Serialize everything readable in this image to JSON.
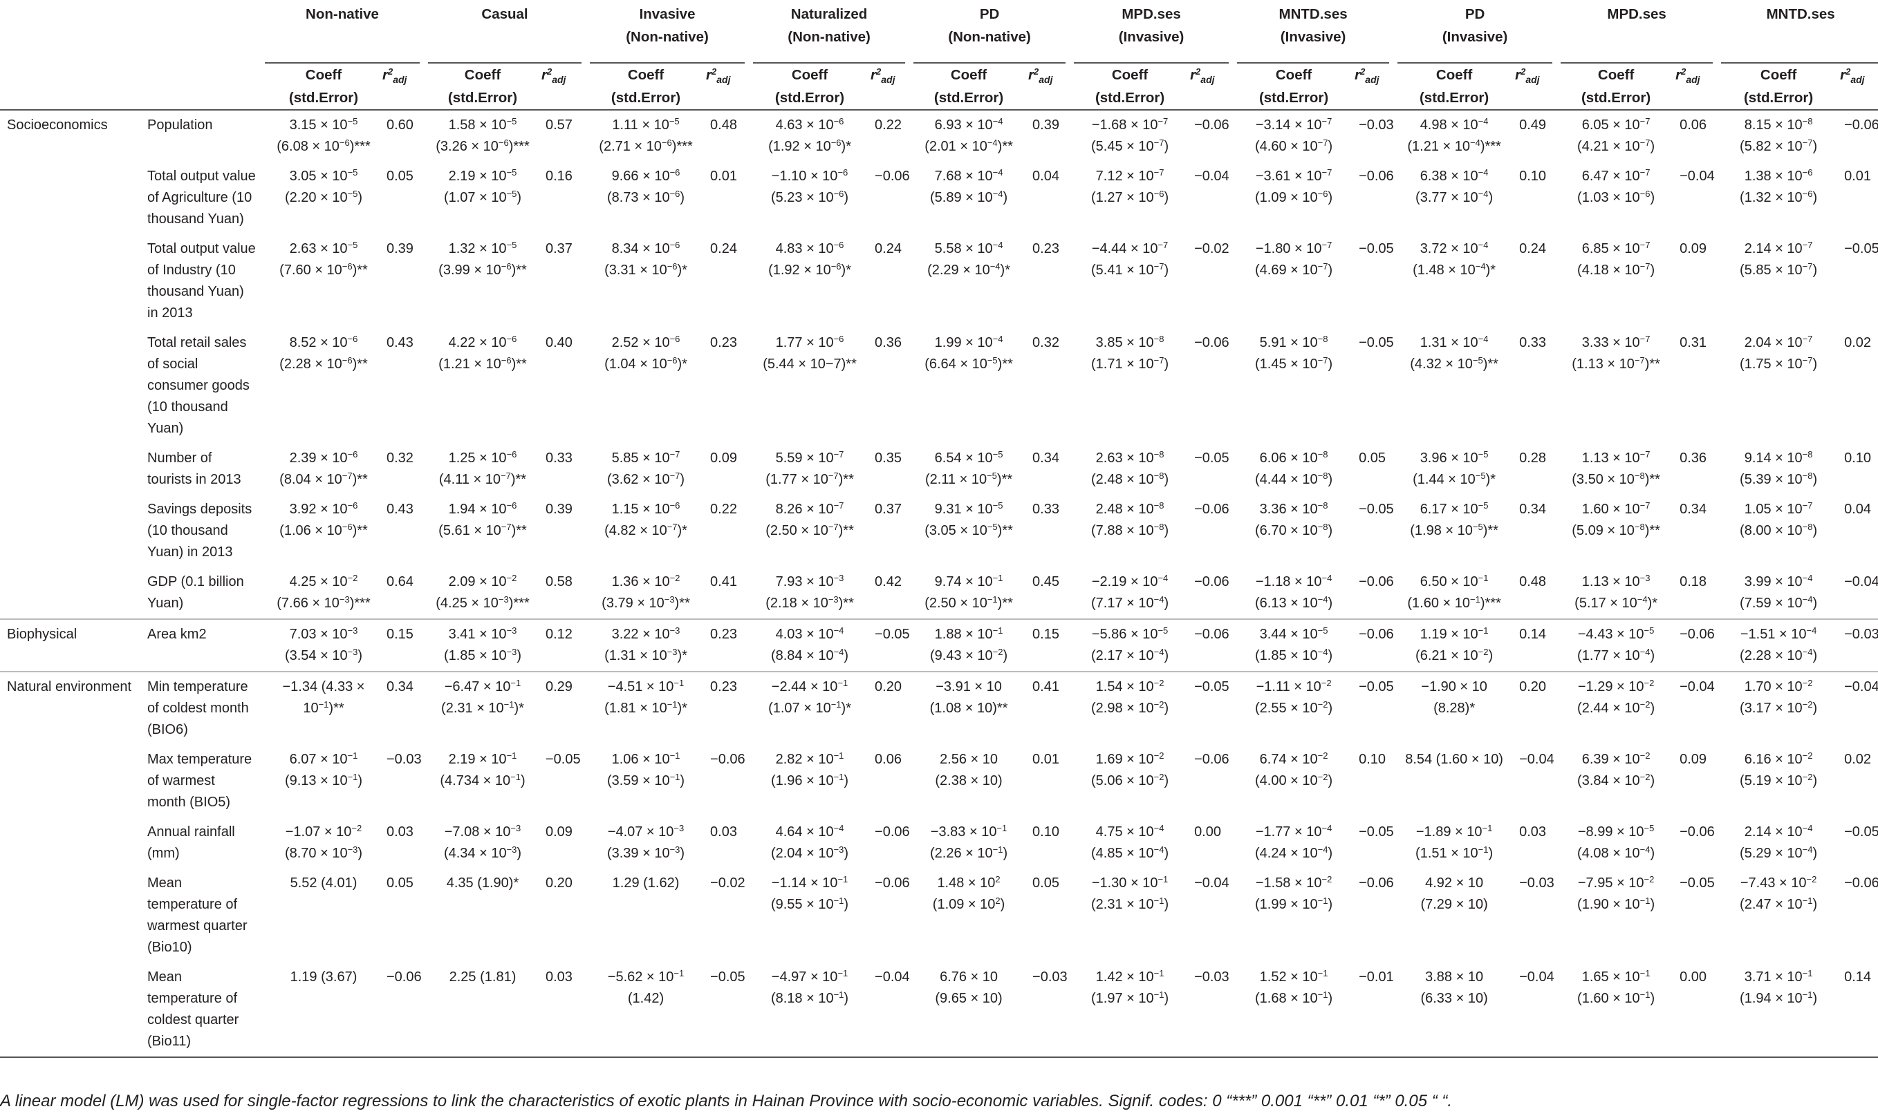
{
  "table": {
    "groups": [
      {
        "label": "Non-native",
        "sub": ""
      },
      {
        "label": "Casual",
        "sub": ""
      },
      {
        "label": "Invasive",
        "sub": "(Non-native)"
      },
      {
        "label": "Naturalized",
        "sub": "(Non-native)"
      },
      {
        "label": "PD",
        "sub": "(Non-native)"
      },
      {
        "label": "MPD.ses",
        "sub": "(Invasive)"
      },
      {
        "label": "MNTD.ses",
        "sub": "(Invasive)"
      },
      {
        "label": "PD",
        "sub": "(Invasive)"
      },
      {
        "label": "MPD.ses",
        "sub": ""
      },
      {
        "label": "MNTD.ses",
        "sub": ""
      }
    ],
    "coeff_header": {
      "line1": "Coeff",
      "line2": "(std.Error)"
    },
    "r2_header": {
      "r": "r",
      "sup": "2",
      "sub": "adj"
    },
    "rows": [
      {
        "category": "Socioeconomics",
        "variable": "Population",
        "cells": [
          {
            "c": "3.15 × 10<sup>−5</sup><br>(6.08 × 10<sup>−6</sup>)***",
            "r": "0.60"
          },
          {
            "c": "1.58 × 10<sup>−5</sup><br>(3.26 × 10<sup>−6</sup>)***",
            "r": "0.57"
          },
          {
            "c": "1.11 × 10<sup>−5</sup><br>(2.71 × 10<sup>−6</sup>)***",
            "r": "0.48"
          },
          {
            "c": "4.63 × 10<sup>−6</sup><br>(1.92 × 10<sup>−6</sup>)*",
            "r": "0.22"
          },
          {
            "c": "6.93 × 10<sup>−4</sup><br>(2.01 × 10<sup>−4</sup>)**",
            "r": "0.39"
          },
          {
            "c": "−1.68 × 10<sup>−7</sup><br>(5.45 × 10<sup>−7</sup>)",
            "r": "−0.06"
          },
          {
            "c": "−3.14 × 10<sup>−7</sup><br>(4.60 × 10<sup>−7</sup>)",
            "r": "−0.03"
          },
          {
            "c": "4.98 × 10<sup>−4</sup><br>(1.21 × 10<sup>−4</sup>)***",
            "r": "0.49"
          },
          {
            "c": "6.05 × 10<sup>−7</sup><br>(4.21 × 10<sup>−7</sup>)",
            "r": "0.06"
          },
          {
            "c": "8.15 × 10<sup>−8</sup><br>(5.82 × 10<sup>−7</sup>)",
            "r": "−0.06"
          }
        ]
      },
      {
        "category": "",
        "variable": "Total output value of Agriculture (10 thousand Yuan)",
        "cells": [
          {
            "c": "3.05 × 10<sup>−5</sup><br>(2.20 × 10<sup>−5</sup>)",
            "r": "0.05"
          },
          {
            "c": "2.19 × 10<sup>−5</sup><br>(1.07 × 10<sup>−5</sup>)",
            "r": "0.16"
          },
          {
            "c": "9.66 × 10<sup>−6</sup><br>(8.73 × 10<sup>−6</sup>)",
            "r": "0.01"
          },
          {
            "c": "−1.10 × 10<sup>−6</sup><br>(5.23 × 10<sup>−6</sup>)",
            "r": "−0.06"
          },
          {
            "c": "7.68 × 10<sup>−4</sup><br>(5.89 × 10<sup>−4</sup>)",
            "r": "0.04"
          },
          {
            "c": "7.12 × 10<sup>−7</sup><br>(1.27 × 10<sup>−6</sup>)",
            "r": "−0.04"
          },
          {
            "c": "−3.61 × 10<sup>−7</sup><br>(1.09 × 10<sup>−6</sup>)",
            "r": "−0.06"
          },
          {
            "c": "6.38 × 10<sup>−4</sup><br>(3.77 × 10<sup>−4</sup>)",
            "r": "0.10"
          },
          {
            "c": "6.47 × 10<sup>−7</sup><br>(1.03 × 10<sup>−6</sup>)",
            "r": "−0.04"
          },
          {
            "c": "1.38 × 10<sup>−6</sup><br>(1.32 × 10<sup>−6</sup>)",
            "r": "0.01"
          }
        ]
      },
      {
        "category": "",
        "variable": "Total output value of Industry (10 thousand Yuan) in 2013",
        "cells": [
          {
            "c": "2.63 × 10<sup>−5</sup><br>(7.60 × 10<sup>−6</sup>)**",
            "r": "0.39"
          },
          {
            "c": "1.32 × 10<sup>−5</sup><br>(3.99 × 10<sup>−6</sup>)**",
            "r": "0.37"
          },
          {
            "c": "8.34 × 10<sup>−6</sup><br>(3.31 × 10<sup>−6</sup>)*",
            "r": "0.24"
          },
          {
            "c": "4.83 × 10<sup>−6</sup><br>(1.92 × 10<sup>−6</sup>)*",
            "r": "0.24"
          },
          {
            "c": "5.58 × 10<sup>−4</sup><br>(2.29 × 10<sup>−4</sup>)*",
            "r": "0.23"
          },
          {
            "c": "−4.44 × 10<sup>−7</sup><br>(5.41 × 10<sup>−7</sup>)",
            "r": "−0.02"
          },
          {
            "c": "−1.80 × 10<sup>−7</sup><br>(4.69 × 10<sup>−7</sup>)",
            "r": "−0.05"
          },
          {
            "c": "3.72 × 10<sup>−4</sup><br>(1.48 × 10<sup>−4</sup>)*",
            "r": "0.24"
          },
          {
            "c": "6.85 × 10<sup>−7</sup><br>(4.18 × 10<sup>−7</sup>)",
            "r": "0.09"
          },
          {
            "c": "2.14 × 10<sup>−7</sup><br>(5.85 × 10<sup>−7</sup>)",
            "r": "−0.05"
          }
        ]
      },
      {
        "category": "",
        "variable": "Total retail sales of social consumer goods (10 thousand Yuan)",
        "cells": [
          {
            "c": "8.52 × 10<sup>−6</sup><br>(2.28 × 10<sup>−6</sup>)**",
            "r": "0.43"
          },
          {
            "c": "4.22 × 10<sup>−6</sup><br>(1.21 × 10<sup>−6</sup>)**",
            "r": "0.40"
          },
          {
            "c": "2.52 × 10<sup>−6</sup><br>(1.04 × 10<sup>−6</sup>)*",
            "r": "0.23"
          },
          {
            "c": "1.77 × 10<sup>−6</sup><br>(5.44 × 10−7)**",
            "r": "0.36"
          },
          {
            "c": "1.99 × 10<sup>−4</sup><br>(6.64 × 10<sup>−5</sup>)**",
            "r": "0.32"
          },
          {
            "c": "3.85 × 10<sup>−8</sup><br>(1.71 × 10<sup>−7</sup>)",
            "r": "−0.06"
          },
          {
            "c": "5.91 × 10<sup>−8</sup><br>(1.45 × 10<sup>−7</sup>)",
            "r": "−0.05"
          },
          {
            "c": "1.31 × 10<sup>−4</sup><br>(4.32 × 10<sup>−5</sup>)**",
            "r": "0.33"
          },
          {
            "c": "3.33 × 10<sup>−7</sup><br>(1.13 × 10<sup>−7</sup>)**",
            "r": "0.31"
          },
          {
            "c": "2.04 × 10<sup>−7</sup><br>(1.75 × 10<sup>−7</sup>)",
            "r": "0.02"
          }
        ]
      },
      {
        "category": "",
        "variable": "Number of tourists in 2013",
        "cells": [
          {
            "c": "2.39 × 10<sup>−6</sup><br>(8.04 × 10<sup>−7</sup>)**",
            "r": "0.32"
          },
          {
            "c": "1.25 × 10<sup>−6</sup><br>(4.11 × 10<sup>−7</sup>)**",
            "r": "0.33"
          },
          {
            "c": "5.85 × 10<sup>−7</sup><br>(3.62 × 10<sup>−7</sup>)",
            "r": "0.09"
          },
          {
            "c": "5.59 × 10<sup>−7</sup><br>(1.77 × 10<sup>−7</sup>)**",
            "r": "0.35"
          },
          {
            "c": "6.54 × 10<sup>−5</sup><br>(2.11 × 10<sup>−5</sup>)**",
            "r": "0.34"
          },
          {
            "c": "2.63 × 10<sup>−8</sup><br>(2.48 × 10<sup>−8</sup>)",
            "r": "−0.05"
          },
          {
            "c": "6.06 × 10<sup>−8</sup><br>(4.44 × 10<sup>−8</sup>)",
            "r": "0.05"
          },
          {
            "c": "3.96 × 10<sup>−5</sup><br>(1.44 × 10<sup>−5</sup>)*",
            "r": "0.28"
          },
          {
            "c": "1.13 × 10<sup>−7</sup><br>(3.50 × 10<sup>−8</sup>)**",
            "r": "0.36"
          },
          {
            "c": "9.14 × 10<sup>−8</sup><br>(5.39 × 10<sup>−8</sup>)",
            "r": "0.10"
          }
        ]
      },
      {
        "category": "",
        "variable": "Savings deposits (10 thousand Yuan) in 2013",
        "cells": [
          {
            "c": "3.92 × 10<sup>−6</sup><br>(1.06 × 10<sup>−6</sup>)**",
            "r": "0.43"
          },
          {
            "c": "1.94 × 10<sup>−6</sup><br>(5.61 × 10<sup>−7</sup>)**",
            "r": "0.39"
          },
          {
            "c": "1.15 × 10<sup>−6</sup><br>(4.82 × 10<sup>−7</sup>)*",
            "r": "0.22"
          },
          {
            "c": "8.26 × 10<sup>−7</sup><br>(2.50 × 10<sup>−7</sup>)**",
            "r": "0.37"
          },
          {
            "c": "9.31 × 10<sup>−5</sup><br>(3.05 × 10<sup>−5</sup>)**",
            "r": "0.33"
          },
          {
            "c": "2.48 × 10<sup>−8</sup><br>(7.88 × 10<sup>−8</sup>)",
            "r": "−0.06"
          },
          {
            "c": "3.36 × 10<sup>−8</sup><br>(6.70 × 10<sup>−8</sup>)",
            "r": "−0.05"
          },
          {
            "c": "6.17 × 10<sup>−5</sup><br>(1.98 × 10<sup>−5</sup>)**",
            "r": "0.34"
          },
          {
            "c": "1.60 × 10<sup>−7</sup><br>(5.09 × 10<sup>−8</sup>)**",
            "r": "0.34"
          },
          {
            "c": "1.05 × 10<sup>−7</sup><br>(8.00 × 10<sup>−8</sup>)",
            "r": "0.04"
          }
        ]
      },
      {
        "category": "",
        "variable": "GDP (0.1 billion Yuan)",
        "cells": [
          {
            "c": "4.25 × 10<sup>−2</sup><br>(7.66 × 10<sup>−3</sup>)***",
            "r": "0.64"
          },
          {
            "c": "2.09 × 10<sup>−2</sup><br>(4.25 × 10<sup>−3</sup>)***",
            "r": "0.58"
          },
          {
            "c": "1.36 × 10<sup>−2</sup><br>(3.79 × 10<sup>−3</sup>)**",
            "r": "0.41"
          },
          {
            "c": "7.93 × 10<sup>−3</sup><br>(2.18 × 10<sup>−3</sup>)**",
            "r": "0.42"
          },
          {
            "c": "9.74 × 10<sup>−1</sup><br>(2.50 × 10<sup>−1</sup>)**",
            "r": "0.45"
          },
          {
            "c": "−2.19 × 10<sup>−4</sup><br>(7.17 × 10<sup>−4</sup>)",
            "r": "−0.06"
          },
          {
            "c": "−1.18 × 10<sup>−4</sup><br>(6.13 × 10<sup>−4</sup>)",
            "r": "−0.06"
          },
          {
            "c": "6.50 × 10<sup>−1</sup><br>(1.60 × 10<sup>−1</sup>)***",
            "r": "0.48"
          },
          {
            "c": "1.13 × 10<sup>−3</sup><br>(5.17 × 10<sup>−4</sup>)*",
            "r": "0.18"
          },
          {
            "c": "3.99 × 10<sup>−4</sup><br>(7.59 × 10<sup>−4</sup>)",
            "r": "−0.04"
          }
        ]
      },
      {
        "category": "Biophysical",
        "variable": "Area km2",
        "cells": [
          {
            "c": "7.03 × 10<sup>−3</sup><br>(3.54 × 10<sup>−3</sup>)",
            "r": "0.15"
          },
          {
            "c": "3.41 × 10<sup>−3</sup><br>(1.85 × 10<sup>−3</sup>)",
            "r": "0.12"
          },
          {
            "c": "3.22 × 10<sup>−3</sup><br>(1.31 × 10<sup>−3</sup>)*",
            "r": "0.23"
          },
          {
            "c": "4.03 × 10<sup>−4</sup><br>(8.84 × 10<sup>−4</sup>)",
            "r": "−0.05"
          },
          {
            "c": "1.88 × 10<sup>−1</sup><br>(9.43 × 10<sup>−2</sup>)",
            "r": "0.15"
          },
          {
            "c": "−5.86 × 10<sup>−5</sup><br>(2.17 × 10<sup>−4</sup>)",
            "r": "−0.06"
          },
          {
            "c": "3.44 × 10<sup>−5</sup><br>(1.85 × 10<sup>−4</sup>)",
            "r": "−0.06"
          },
          {
            "c": "1.19 × 10<sup>−1</sup><br>(6.21 × 10<sup>−2</sup>)",
            "r": "0.14"
          },
          {
            "c": "−4.43 × 10<sup>−5</sup><br>(1.77 × 10<sup>−4</sup>)",
            "r": "−0.06"
          },
          {
            "c": "−1.51 × 10<sup>−4</sup><br>(2.28 × 10<sup>−4</sup>)",
            "r": "−0.03"
          }
        ]
      },
      {
        "category": "Natural environment",
        "variable": "Min temperature of coldest month (BIO6)",
        "cells": [
          {
            "c": "−1.34 (4.33 ×<br>10<sup>−1</sup>)**",
            "r": "0.34"
          },
          {
            "c": "−6.47 × 10<sup>−1</sup><br>(2.31 × 10<sup>−1</sup>)*",
            "r": "0.29"
          },
          {
            "c": "−4.51 × 10<sup>−1</sup><br>(1.81 × 10<sup>−1</sup>)*",
            "r": "0.23"
          },
          {
            "c": "−2.44 × 10<sup>−1</sup><br>(1.07 × 10<sup>−1</sup>)*",
            "r": "0.20"
          },
          {
            "c": "−3.91 × 10<br>(1.08 × 10)**",
            "r": "0.41"
          },
          {
            "c": "1.54 × 10<sup>−2</sup><br>(2.98 × 10<sup>−2</sup>)",
            "r": "−0.05"
          },
          {
            "c": "−1.11 × 10<sup>−2</sup><br>(2.55 × 10<sup>−2</sup>)",
            "r": "−0.05"
          },
          {
            "c": "−1.90 × 10<br>(8.28)*",
            "r": "0.20"
          },
          {
            "c": "−1.29 × 10<sup>−2</sup><br>(2.44 × 10<sup>−2</sup>)",
            "r": "−0.04"
          },
          {
            "c": "1.70 × 10<sup>−2</sup><br>(3.17 × 10<sup>−2</sup>)",
            "r": "−0.04"
          }
        ]
      },
      {
        "category": "",
        "variable": "Max temperature of warmest month (BIO5)",
        "cells": [
          {
            "c": "6.07 × 10<sup>−1</sup><br>(9.13 × 10<sup>−1</sup>)",
            "r": "−0.03"
          },
          {
            "c": "2.19 × 10<sup>−1</sup><br>(4.734 × 10<sup>−1</sup>)",
            "r": "−0.05"
          },
          {
            "c": "1.06 × 10<sup>−1</sup><br>(3.59 × 10<sup>−1</sup>)",
            "r": "−0.06"
          },
          {
            "c": "2.82 × 10<sup>−1</sup><br>(1.96 × 10<sup>−1</sup>)",
            "r": "0.06"
          },
          {
            "c": "2.56 × 10<br>(2.38 × 10)",
            "r": "0.01"
          },
          {
            "c": "1.69 × 10<sup>−2</sup><br>(5.06 × 10<sup>−2</sup>)",
            "r": "−0.06"
          },
          {
            "c": "6.74 × 10<sup>−2</sup><br>(4.00 × 10<sup>−2</sup>)",
            "r": "0.10"
          },
          {
            "c": "8.54 (1.60 × 10)",
            "r": "−0.04"
          },
          {
            "c": "6.39 × 10<sup>−2</sup><br>(3.84 × 10<sup>−2</sup>)",
            "r": "0.09"
          },
          {
            "c": "6.16 × 10<sup>−2</sup><br>(5.19 × 10<sup>−2</sup>)",
            "r": "0.02"
          }
        ]
      },
      {
        "category": "",
        "variable": "Annual rainfall (mm)",
        "cells": [
          {
            "c": "−1.07 × 10<sup>−2</sup><br>(8.70 × 10<sup>−3</sup>)",
            "r": "0.03"
          },
          {
            "c": "−7.08 × 10<sup>−3</sup><br>(4.34 × 10<sup>−3</sup>)",
            "r": "0.09"
          },
          {
            "c": "−4.07 × 10<sup>−3</sup><br>(3.39 × 10<sup>−3</sup>)",
            "r": "0.03"
          },
          {
            "c": "4.64 × 10<sup>−4</sup><br>(2.04 × 10<sup>−3</sup>)",
            "r": "−0.06"
          },
          {
            "c": "−3.83 × 10<sup>−1</sup><br>(2.26 × 10<sup>−1</sup>)",
            "r": "0.10"
          },
          {
            "c": "4.75 × 10<sup>−4</sup><br>(4.85 × 10<sup>−4</sup>)",
            "r": "0.00"
          },
          {
            "c": "−1.77 × 10<sup>−4</sup><br>(4.24 × 10<sup>−4</sup>)",
            "r": "−0.05"
          },
          {
            "c": "−1.89 × 10<sup>−1</sup><br>(1.51 × 10<sup>−1</sup>)",
            "r": "0.03"
          },
          {
            "c": "−8.99 × 10<sup>−5</sup><br>(4.08 × 10<sup>−4</sup>)",
            "r": "−0.06"
          },
          {
            "c": "2.14 × 10<sup>−4</sup><br>(5.29 × 10<sup>−4</sup>)",
            "r": "−0.05"
          }
        ]
      },
      {
        "category": "",
        "variable": "Mean temperature of warmest quarter (Bio10)",
        "cells": [
          {
            "c": "5.52 (4.01)",
            "r": "0.05"
          },
          {
            "c": "4.35 (1.90)*",
            "r": "0.20"
          },
          {
            "c": "1.29 (1.62)",
            "r": "−0.02"
          },
          {
            "c": "−1.14 × 10<sup>−1</sup><br>(9.55 × 10<sup>−1</sup>)",
            "r": "−0.06"
          },
          {
            "c": "1.48 × 10<sup>2</sup><br>(1.09 × 10<sup>2</sup>)",
            "r": "0.05"
          },
          {
            "c": "−1.30 × 10<sup>−1</sup><br>(2.31 × 10<sup>−1</sup>)",
            "r": "−0.04"
          },
          {
            "c": "−1.58 × 10<sup>−2</sup><br>(1.99 × 10<sup>−1</sup>)",
            "r": "−0.06"
          },
          {
            "c": "4.92 × 10<br>(7.29 × 10)",
            "r": "−0.03"
          },
          {
            "c": "−7.95 × 10<sup>−2</sup><br>(1.90 × 10<sup>−1</sup>)",
            "r": "−0.05"
          },
          {
            "c": "−7.43 × 10<sup>−2</sup><br>(2.47 × 10<sup>−1</sup>)",
            "r": "−0.06"
          }
        ]
      },
      {
        "category": "",
        "variable": "Mean temperature of coldest quarter (Bio11)",
        "cells": [
          {
            "c": "1.19 (3.67)",
            "r": "−0.06"
          },
          {
            "c": "2.25 (1.81)",
            "r": "0.03"
          },
          {
            "c": "−5.62 × 10<sup>−1</sup><br>(1.42)",
            "r": "−0.05"
          },
          {
            "c": "−4.97 × 10<sup>−1</sup><br>(8.18 × 10<sup>−1</sup>)",
            "r": "−0.04"
          },
          {
            "c": "6.76 × 10<br>(9.65 × 10)",
            "r": "−0.03"
          },
          {
            "c": "1.42 × 10<sup>−1</sup><br>(1.97 × 10<sup>−1</sup>)",
            "r": "−0.03"
          },
          {
            "c": "1.52 × 10<sup>−1</sup><br>(1.68 × 10<sup>−1</sup>)",
            "r": "−0.01"
          },
          {
            "c": "3.88 × 10<br>(6.33 × 10)",
            "r": "−0.04"
          },
          {
            "c": "1.65 × 10<sup>−1</sup><br>(1.60 × 10<sup>−1</sup>)",
            "r": "0.00"
          },
          {
            "c": "3.71 × 10<sup>−1</sup><br>(1.94 × 10<sup>−1</sup>)",
            "r": "0.14"
          }
        ]
      }
    ]
  },
  "footnote": "A linear model (LM) was used for single-factor regressions to link the characteristics of exotic plants in Hainan Province with socio-economic variables. Signif. codes: 0 “***” 0.001 “**” 0.01 “*” 0.05 “ “."
}
